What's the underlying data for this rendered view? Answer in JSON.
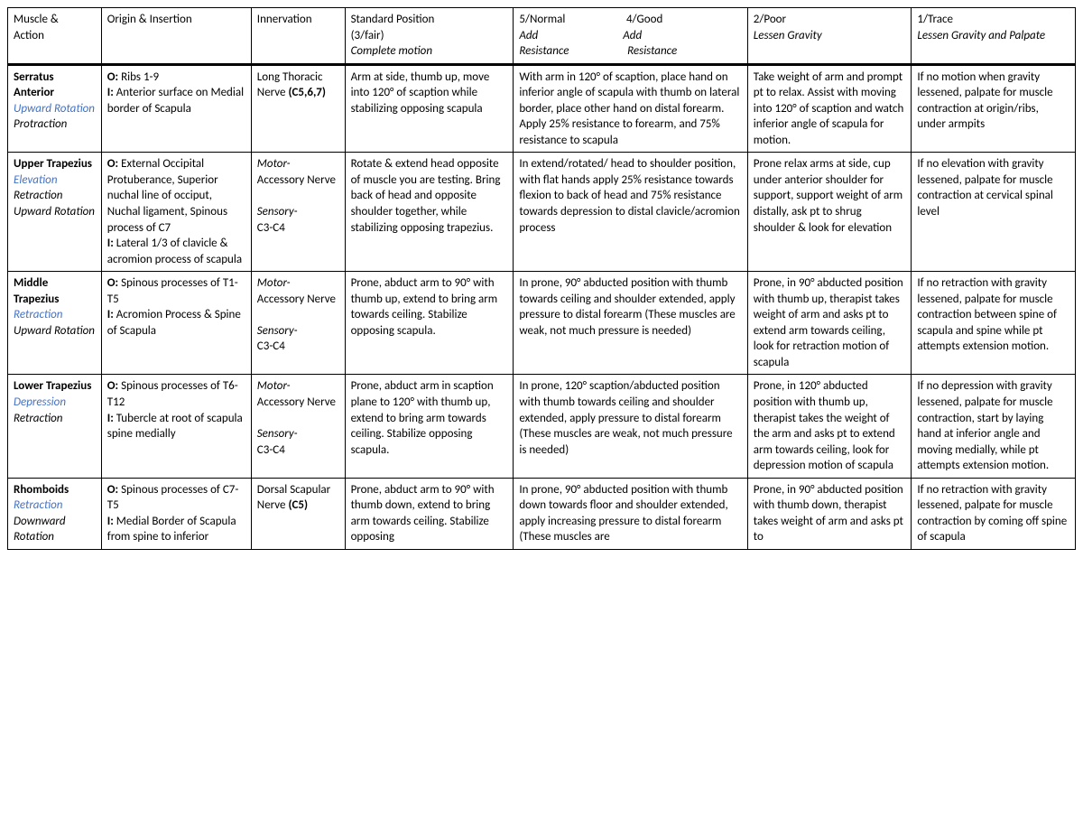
{
  "headers": {
    "muscle_l1": "Muscle &",
    "muscle_l2": "Action",
    "origin": "Origin & Insertion",
    "innerv": "Innervation",
    "pos_l1": "Standard Position",
    "pos_l2": "(3/fair)",
    "pos_l3": "Complete motion",
    "g5_l1": "5/Normal",
    "g5_l2": "Add",
    "g5_l3": "Resistance",
    "g4_l1": "4/Good",
    "g4_l2": "Add",
    "g4_l3": "Resistance",
    "g2_l1": "2/Poor",
    "g2_l2": "Lessen Gravity",
    "g1_l1": "1/Trace",
    "g1_l2": "Lessen Gravity and Palpate"
  },
  "rows": [
    {
      "muscle": "Serratus Anterior",
      "actions_blue": [
        "Upward Rotation"
      ],
      "actions_plain": [
        "Protraction"
      ],
      "origin_o": "Ribs 1-9",
      "origin_i": "Anterior surface on Medial border of Scapula",
      "innerv_main": "Long Thoracic Nerve",
      "innerv_bold": "(C5,6,7)",
      "innerv_sensory": "",
      "pos": "Arm at side, thumb up, move into 120° of scaption while stabilizing opposing scapula",
      "g5": "With arm in 120° of scaption, place hand on inferior angle of scapula with thumb on lateral border, place other hand on distal forearm. Apply 25% resistance to forearm, and 75% resistance to scapula",
      "g2": "Take weight of arm and prompt pt to relax. Assist with moving into 120° of scaption and watch inferior angle of scapula for motion.",
      "g1": "If no motion when gravity lessened, palpate for muscle contraction at origin/ribs, under armpits"
    },
    {
      "muscle": "Upper Trapezius",
      "actions_blue": [
        "Elevation"
      ],
      "actions_plain": [
        "Retraction",
        "Upward Rotation"
      ],
      "origin_o": "External Occipital Protuberance, Superior nuchal line of occiput, Nuchal ligament, Spinous process of C7",
      "origin_i": "Lateral 1/3 of clavicle & acromion process of scapula",
      "innerv_main": "Accessory Nerve",
      "innerv_motor": "Motor-",
      "innerv_sensory": "Sensory-",
      "innerv_sensory_val": "C3-C4",
      "pos": "Rotate & extend head opposite of muscle you are testing. Bring back of head and opposite shoulder together, while stabilizing opposing trapezius.",
      "g5": "In extend/rotated/ head to shoulder position, with flat hands apply 25% resistance towards flexion to back of head and 75% resistance towards depression to distal clavicle/acromion process",
      "g2": "Prone relax arms at side, cup under anterior shoulder for support, support weight of arm distally, ask pt to shrug shoulder & look for elevation",
      "g1": "If no elevation with gravity lessened, palpate for muscle contraction at cervical spinal level"
    },
    {
      "muscle": "Middle Trapezius",
      "actions_blue": [
        "Retraction"
      ],
      "actions_plain": [
        "Upward Rotation"
      ],
      "origin_o": "Spinous processes of T1-T5",
      "origin_i": "Acromion Process & Spine of Scapula",
      "innerv_main": "Accessory Nerve",
      "innerv_motor": "Motor-",
      "innerv_sensory": "Sensory-",
      "innerv_sensory_val": "C3-C4",
      "pos": "Prone, abduct arm to 90° with thumb up, extend to bring arm towards ceiling. Stabilize opposing scapula.",
      "g5": "In prone, 90° abducted position with thumb towards ceiling and shoulder extended, apply pressure to distal forearm (These muscles are weak, not much pressure is needed)",
      "g2": "Prone, in 90° abducted position with thumb up, therapist takes weight of arm and asks pt to extend arm towards ceiling, look for retraction motion of scapula",
      "g1": "If no retraction with gravity lessened, palpate for muscle contraction between spine of scapula and spine while pt attempts extension motion."
    },
    {
      "muscle": "Lower Trapezius",
      "actions_blue": [
        "Depression"
      ],
      "actions_plain": [
        "Retraction"
      ],
      "origin_o": "Spinous processes of T6-T12",
      "origin_i": "Tubercle at root of scapula spine medially",
      "innerv_main": "Accessory Nerve",
      "innerv_motor": "Motor-",
      "innerv_sensory": "Sensory-",
      "innerv_sensory_val": "C3-C4",
      "pos": "Prone, abduct arm in scaption plane to 120° with thumb up, extend to bring arm towards ceiling. Stabilize opposing scapula.",
      "g5": "In prone, 120° scaption/abducted position with thumb towards ceiling and shoulder extended, apply pressure to distal forearm (These muscles are weak, not much pressure is needed)",
      "g2": "Prone, in 120° abducted position with thumb up, therapist takes the weight of the arm and asks pt to extend arm towards ceiling, look for depression motion of scapula",
      "g1": "If no depression with gravity lessened, palpate for muscle contraction, start by laying hand at inferior angle and moving medially, while pt attempts extension motion."
    },
    {
      "muscle": "Rhomboids",
      "actions_blue": [
        "Retraction"
      ],
      "actions_plain": [
        "Downward Rotation"
      ],
      "origin_o": "Spinous processes of C7-T5",
      "origin_i": "Medial Border of Scapula from spine to inferior",
      "innerv_main": "Dorsal Scapular Nerve",
      "innerv_bold": "(C5)",
      "innerv_sensory": "",
      "pos": "Prone, abduct arm to 90° with thumb down, extend to bring arm towards ceiling. Stabilize opposing",
      "g5": "In prone, 90° abducted position with thumb down towards floor and shoulder extended, apply increasing pressure to distal forearm (These muscles are",
      "g2": "Prone, in 90° abducted position with thumb down, therapist takes weight of arm and asks pt to",
      "g1": "If no retraction with gravity lessened, palpate for muscle contraction by coming off spine of scapula"
    }
  ],
  "labels": {
    "O": "O:",
    "I": "I:"
  }
}
